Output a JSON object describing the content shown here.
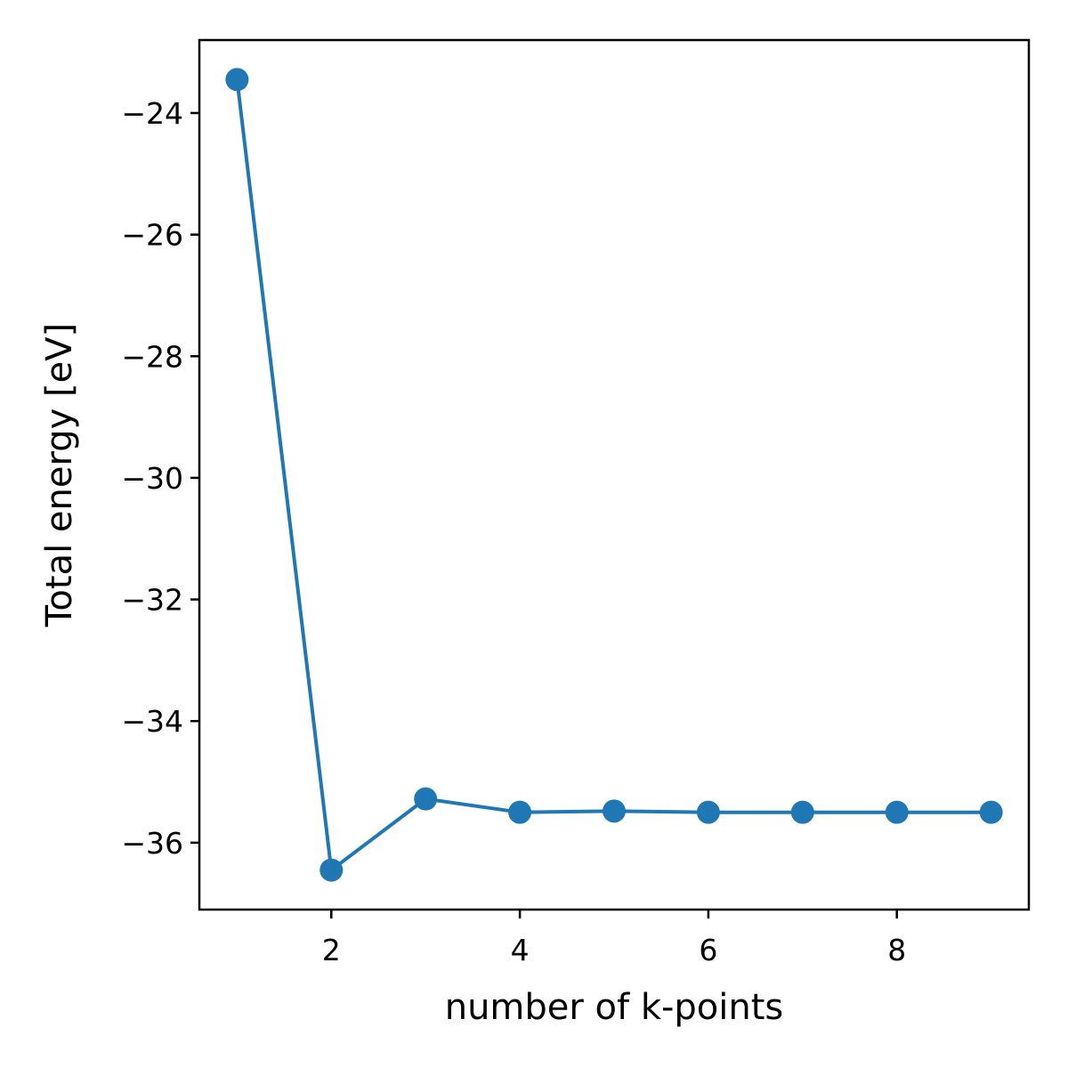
{
  "chart_data": {
    "type": "line",
    "title": "",
    "xlabel": "number of k-points",
    "ylabel": "Total energy [eV]",
    "xlim": [
      0.6,
      9.4
    ],
    "ylim": [
      -37.1,
      -22.8
    ],
    "xticks": [
      2,
      4,
      6,
      8
    ],
    "xtick_labels": [
      "2",
      "4",
      "6",
      "8"
    ],
    "yticks": [
      -36,
      -34,
      -32,
      -30,
      -28,
      -26,
      -24
    ],
    "ytick_labels": [
      "−36",
      "−34",
      "−32",
      "−30",
      "−28",
      "−26",
      "−24"
    ],
    "grid": false,
    "legend": "none",
    "series": [
      {
        "color": "#1f77b4",
        "marker": "circle",
        "x": [
          1,
          2,
          3,
          4,
          5,
          6,
          7,
          8,
          9
        ],
        "y": [
          -23.45,
          -36.45,
          -35.28,
          -35.5,
          -35.48,
          -35.5,
          -35.5,
          -35.5,
          -35.5
        ]
      }
    ]
  }
}
